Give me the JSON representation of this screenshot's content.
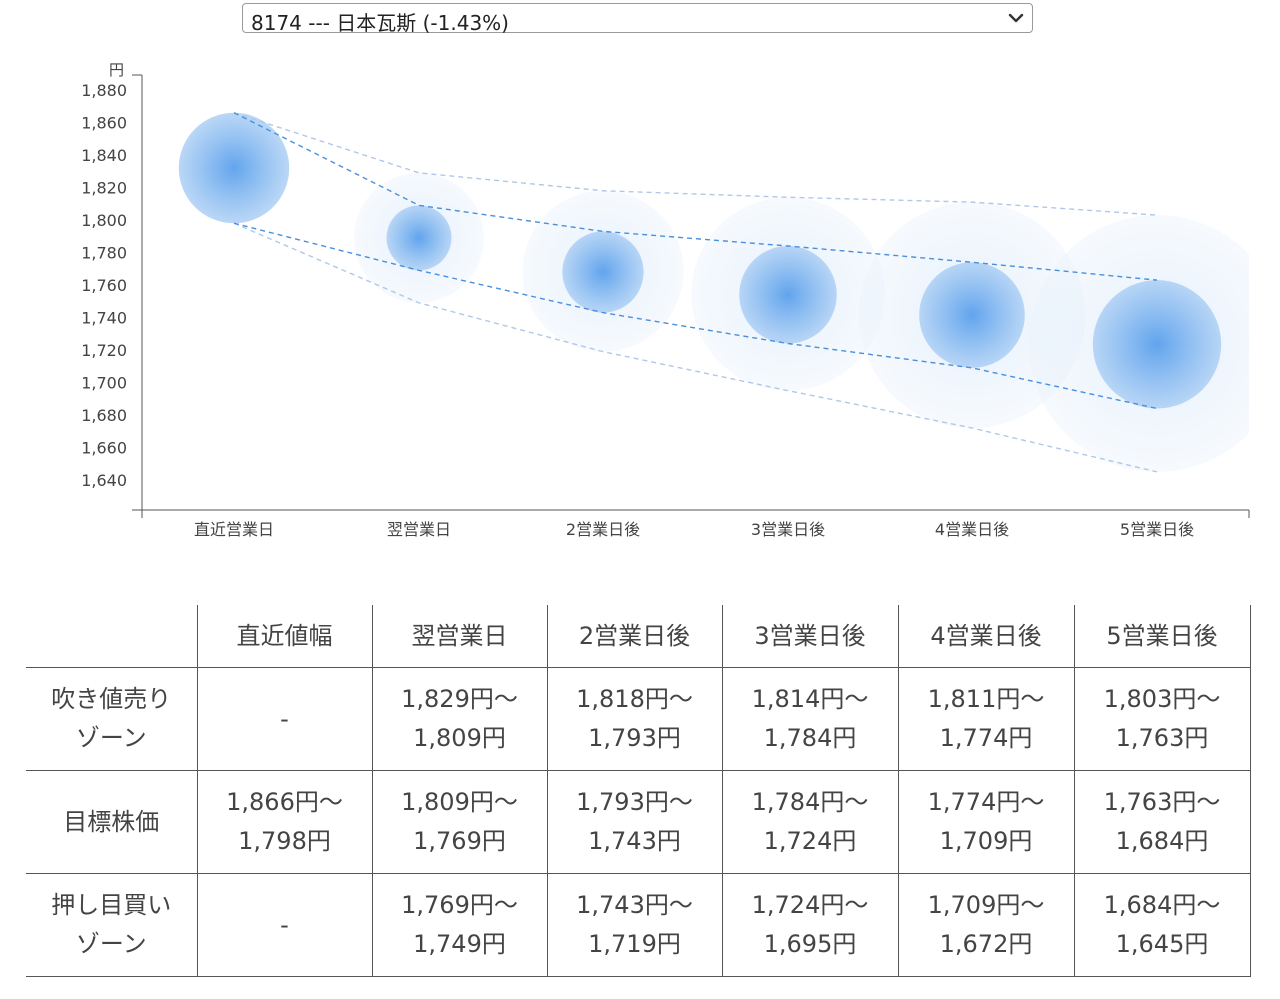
{
  "selector": {
    "selected": "8174 --- 日本瓦斯 (-1.43%)",
    "icon": "chevron-down-icon"
  },
  "chart_data": {
    "type": "scatter",
    "unit_label": "円",
    "ylim": [
      1630,
      1890
    ],
    "yticks": [
      "1,880",
      "1,860",
      "1,840",
      "1,820",
      "1,800",
      "1,780",
      "1,760",
      "1,740",
      "1,720",
      "1,700",
      "1,680",
      "1,660",
      "1,640"
    ],
    "ytick_values": [
      1880,
      1860,
      1840,
      1820,
      1800,
      1780,
      1760,
      1740,
      1720,
      1700,
      1680,
      1660,
      1640
    ],
    "categories": [
      "直近営業日",
      "翌営業日",
      "2営業日後",
      "3営業日後",
      "4営業日後",
      "5営業日後"
    ],
    "center": [
      1832,
      1789,
      1768,
      1754,
      1741,
      1723
    ],
    "inner_upper": [
      1866,
      1809,
      1793,
      1784,
      1774,
      1763
    ],
    "inner_lower": [
      1798,
      1769,
      1743,
      1724,
      1709,
      1684
    ],
    "outer_upper": [
      1866,
      1829,
      1818,
      1814,
      1811,
      1803
    ],
    "outer_lower": [
      1798,
      1749,
      1719,
      1695,
      1672,
      1645
    ],
    "colors": {
      "bubble": "#5aa0ec",
      "line": "#4a8fdc",
      "outer_line": "#b0c8e8"
    },
    "grid": false,
    "legend": "none"
  },
  "table": {
    "headers": [
      "",
      "直近値幅",
      "翌営業日",
      "2営業日後",
      "3営業日後",
      "4営業日後",
      "5営業日後"
    ],
    "rows": [
      {
        "label": [
          "吹き値売り",
          "ゾーン"
        ],
        "cells": [
          [
            "-"
          ],
          [
            "1,829円〜",
            "1,809円"
          ],
          [
            "1,818円〜",
            "1,793円"
          ],
          [
            "1,814円〜",
            "1,784円"
          ],
          [
            "1,811円〜",
            "1,774円"
          ],
          [
            "1,803円〜",
            "1,763円"
          ]
        ]
      },
      {
        "label": [
          "目標株価"
        ],
        "cells": [
          [
            "1,866円〜",
            "1,798円"
          ],
          [
            "1,809円〜",
            "1,769円"
          ],
          [
            "1,793円〜",
            "1,743円"
          ],
          [
            "1,784円〜",
            "1,724円"
          ],
          [
            "1,774円〜",
            "1,709円"
          ],
          [
            "1,763円〜",
            "1,684円"
          ]
        ]
      },
      {
        "label": [
          "押し目買い",
          "ゾーン"
        ],
        "cells": [
          [
            "-"
          ],
          [
            "1,769円〜",
            "1,749円"
          ],
          [
            "1,743円〜",
            "1,719円"
          ],
          [
            "1,724円〜",
            "1,695円"
          ],
          [
            "1,709円〜",
            "1,672円"
          ],
          [
            "1,684円〜",
            "1,645円"
          ]
        ]
      }
    ]
  }
}
